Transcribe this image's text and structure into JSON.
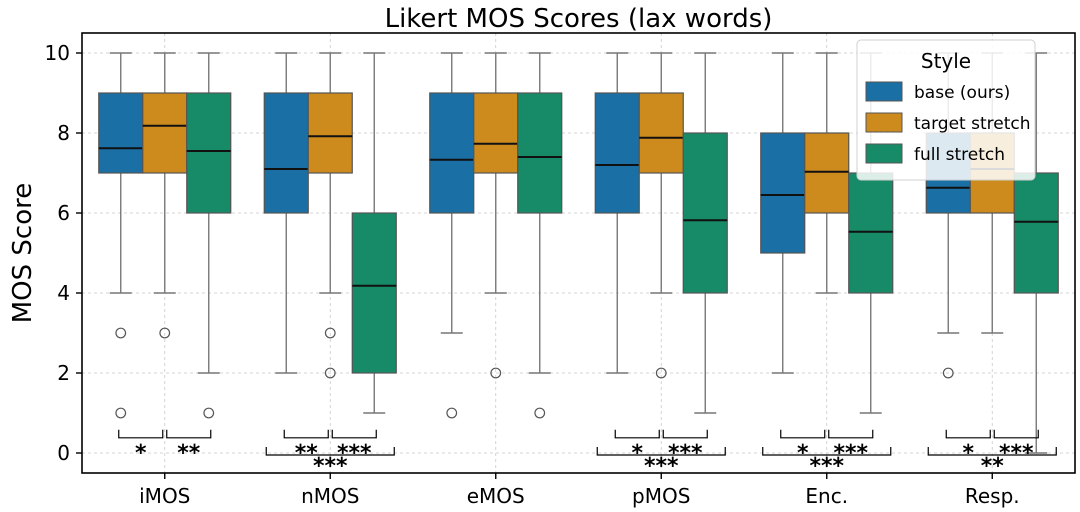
{
  "chart_data": {
    "type": "box",
    "title": "Likert MOS Scores (lax words)",
    "xlabel": "",
    "ylabel": "MOS Score",
    "ylim": [
      -0.5,
      10.5
    ],
    "yticks": [
      0,
      2,
      4,
      6,
      8,
      10
    ],
    "grid": true,
    "categories": [
      "iMOS",
      "nMOS",
      "eMOS",
      "pMOS",
      "Enc.",
      "Resp."
    ],
    "legend": {
      "title": "Style",
      "placement": "top-right"
    },
    "colors": {
      "base (ours)": "#1a6fa4",
      "target stretch": "#cd8b1e",
      "full stretch": "#178a68"
    },
    "series": [
      {
        "name": "base (ours)",
        "color": "#1a6fa4",
        "boxes": [
          {
            "q1": 7,
            "median": 7.62,
            "q3": 9,
            "whisker_low": 4,
            "whisker_high": 10,
            "outliers": [
              3,
              1
            ]
          },
          {
            "q1": 6,
            "median": 7.1,
            "q3": 9,
            "whisker_low": 2,
            "whisker_high": 10,
            "outliers": []
          },
          {
            "q1": 6,
            "median": 7.33,
            "q3": 9,
            "whisker_low": 3,
            "whisker_high": 10,
            "outliers": [
              1
            ]
          },
          {
            "q1": 6,
            "median": 7.2,
            "q3": 9,
            "whisker_low": 2,
            "whisker_high": 10,
            "outliers": []
          },
          {
            "q1": 5,
            "median": 6.45,
            "q3": 8,
            "whisker_low": 2,
            "whisker_high": 10,
            "outliers": []
          },
          {
            "q1": 6,
            "median": 6.63,
            "q3": 8,
            "whisker_low": 3,
            "whisker_high": 10,
            "outliers": [
              2
            ]
          }
        ]
      },
      {
        "name": "target stretch",
        "color": "#cd8b1e",
        "boxes": [
          {
            "q1": 7,
            "median": 8.18,
            "q3": 9,
            "whisker_low": 4,
            "whisker_high": 10,
            "outliers": [
              3
            ]
          },
          {
            "q1": 7,
            "median": 7.92,
            "q3": 9,
            "whisker_low": 4,
            "whisker_high": 10,
            "outliers": [
              3,
              2
            ]
          },
          {
            "q1": 7,
            "median": 7.73,
            "q3": 9,
            "whisker_low": 4,
            "whisker_high": 10,
            "outliers": [
              2
            ]
          },
          {
            "q1": 7,
            "median": 7.88,
            "q3": 9,
            "whisker_low": 4,
            "whisker_high": 10,
            "outliers": [
              2
            ]
          },
          {
            "q1": 6,
            "median": 7.03,
            "q3": 8,
            "whisker_low": 4,
            "whisker_high": 10,
            "outliers": []
          },
          {
            "q1": 6,
            "median": 7.1,
            "q3": 8,
            "whisker_low": 3,
            "whisker_high": 10,
            "outliers": []
          }
        ]
      },
      {
        "name": "full stretch",
        "color": "#178a68",
        "boxes": [
          {
            "q1": 6,
            "median": 7.55,
            "q3": 9,
            "whisker_low": 2,
            "whisker_high": 10,
            "outliers": [
              1
            ]
          },
          {
            "q1": 2,
            "median": 4.18,
            "q3": 6,
            "whisker_low": 1,
            "whisker_high": 10,
            "outliers": []
          },
          {
            "q1": 6,
            "median": 7.4,
            "q3": 9,
            "whisker_low": 2,
            "whisker_high": 10,
            "outliers": [
              1
            ]
          },
          {
            "q1": 4,
            "median": 5.82,
            "q3": 8,
            "whisker_low": 1,
            "whisker_high": 10,
            "outliers": []
          },
          {
            "q1": 4,
            "median": 5.53,
            "q3": 7,
            "whisker_low": 1,
            "whisker_high": 10,
            "outliers": []
          },
          {
            "q1": 4,
            "median": 5.78,
            "q3": 7,
            "whisker_low": 0,
            "whisker_high": 10,
            "outliers": []
          }
        ]
      }
    ],
    "significance": [
      {
        "category": "iMOS",
        "pair": [
          "base (ours)",
          "target stretch"
        ],
        "label": "*"
      },
      {
        "category": "iMOS",
        "pair": [
          "target stretch",
          "full stretch"
        ],
        "label": "**"
      },
      {
        "category": "nMOS",
        "pair": [
          "base (ours)",
          "target stretch"
        ],
        "label": "**"
      },
      {
        "category": "nMOS",
        "pair": [
          "target stretch",
          "full stretch"
        ],
        "label": "***"
      },
      {
        "category": "nMOS",
        "pair": [
          "base (ours)",
          "full stretch"
        ],
        "label": "***"
      },
      {
        "category": "pMOS",
        "pair": [
          "base (ours)",
          "target stretch"
        ],
        "label": "*"
      },
      {
        "category": "pMOS",
        "pair": [
          "target stretch",
          "full stretch"
        ],
        "label": "***"
      },
      {
        "category": "pMOS",
        "pair": [
          "base (ours)",
          "full stretch"
        ],
        "label": "***"
      },
      {
        "category": "Enc.",
        "pair": [
          "base (ours)",
          "target stretch"
        ],
        "label": "*"
      },
      {
        "category": "Enc.",
        "pair": [
          "target stretch",
          "full stretch"
        ],
        "label": "***"
      },
      {
        "category": "Enc.",
        "pair": [
          "base (ours)",
          "full stretch"
        ],
        "label": "***"
      },
      {
        "category": "Resp.",
        "pair": [
          "base (ours)",
          "target stretch"
        ],
        "label": "*"
      },
      {
        "category": "Resp.",
        "pair": [
          "target stretch",
          "full stretch"
        ],
        "label": "***"
      },
      {
        "category": "Resp.",
        "pair": [
          "base (ours)",
          "full stretch"
        ],
        "label": "**"
      }
    ]
  }
}
